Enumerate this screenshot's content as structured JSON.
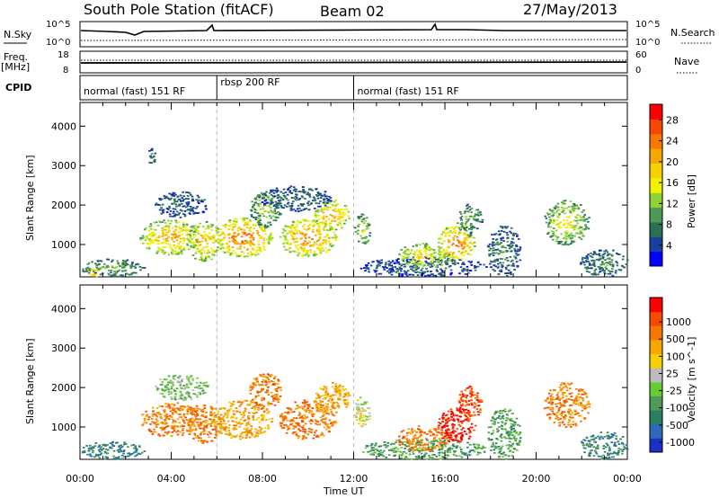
{
  "header": {
    "station": "South Pole Station (fitACF)",
    "beam": "Beam 02",
    "date": "27/May/2013"
  },
  "top_panels": {
    "nsky_label": "N.Sky",
    "nsky_ticks": [
      "10^5",
      "10^0"
    ],
    "nsearch_label": "N.Search",
    "freq_label_1": "Freq.",
    "freq_label_2": "[MHz]",
    "freq_ticks": [
      "18",
      "8"
    ],
    "nave_ticks": [
      "60",
      "0"
    ],
    "nave_label": "Nave",
    "cpid_label": "CPID"
  },
  "cpid_segments": [
    {
      "label": "normal (fast) 151 RF",
      "start": 0,
      "end": 6.0
    },
    {
      "label": "rbsp 200 RF",
      "start": 6.0,
      "end": 12.0
    },
    {
      "label": "normal (fast) 151 RF",
      "start": 12.0,
      "end": 24.0
    }
  ],
  "chart_data": [
    {
      "type": "heatmap",
      "panel": "power",
      "title": "",
      "xlabel": "Time UT",
      "ylabel": "Slant Range [km]",
      "xlim": [
        0,
        24
      ],
      "ylim": [
        180,
        4600
      ],
      "x_ticks": [
        "00:00",
        "04:00",
        "08:00",
        "12:00",
        "16:00",
        "20:00",
        "00:00"
      ],
      "y_ticks": [
        1000,
        2000,
        3000,
        4000
      ],
      "colorbar": {
        "label": "Power [dB]",
        "range": [
          0,
          31
        ],
        "ticks": [
          "4",
          "8",
          "12",
          "16",
          "20",
          "24",
          "28"
        ],
        "colors": [
          "#0000ff",
          "#1a3f9e",
          "#2a6f56",
          "#4e9a54",
          "#8ed334",
          "#f2f200",
          "#f7d000",
          "#f7a600",
          "#f77700",
          "#f74a00",
          "#ff0000"
        ]
      },
      "blobs": [
        {
          "t0": 0.0,
          "t1": 2.8,
          "r0": 200,
          "r1": 650,
          "value": 12
        },
        {
          "t0": 0.2,
          "t1": 0.9,
          "r0": 200,
          "r1": 420,
          "value": 26
        },
        {
          "t0": 2.6,
          "t1": 5.2,
          "r0": 750,
          "r1": 1650,
          "value": 24
        },
        {
          "t0": 3.2,
          "t1": 5.6,
          "r0": 1700,
          "r1": 2350,
          "value": 6
        },
        {
          "t0": 2.9,
          "t1": 3.3,
          "r0": 3050,
          "r1": 3450,
          "value": 7
        },
        {
          "t0": 4.6,
          "t1": 6.2,
          "r0": 600,
          "r1": 1600,
          "value": 22
        },
        {
          "t0": 5.8,
          "t1": 8.4,
          "r0": 700,
          "r1": 1700,
          "value": 28
        },
        {
          "t0": 7.4,
          "t1": 8.8,
          "r0": 1450,
          "r1": 2400,
          "value": 14
        },
        {
          "t0": 8.7,
          "t1": 11.2,
          "r0": 700,
          "r1": 1700,
          "value": 27
        },
        {
          "t0": 10.2,
          "t1": 11.8,
          "r0": 1350,
          "r1": 2150,
          "value": 24
        },
        {
          "t0": 7.8,
          "t1": 11.0,
          "r0": 1850,
          "r1": 2500,
          "value": 7
        },
        {
          "t0": 12.0,
          "t1": 12.7,
          "r0": 1000,
          "r1": 1800,
          "value": 16
        },
        {
          "t0": 12.2,
          "t1": 17.8,
          "r0": 200,
          "r1": 700,
          "value": 6
        },
        {
          "t0": 13.8,
          "t1": 16.2,
          "r0": 400,
          "r1": 1050,
          "value": 20
        },
        {
          "t0": 15.6,
          "t1": 17.3,
          "r0": 600,
          "r1": 1500,
          "value": 28
        },
        {
          "t0": 16.5,
          "t1": 17.6,
          "r0": 1200,
          "r1": 2050,
          "value": 12
        },
        {
          "t0": 17.8,
          "t1": 19.3,
          "r0": 200,
          "r1": 1500,
          "value": 9
        },
        {
          "t0": 20.3,
          "t1": 22.3,
          "r0": 1000,
          "r1": 2150,
          "value": 18
        },
        {
          "t0": 21.9,
          "t1": 24.0,
          "r0": 200,
          "r1": 900,
          "value": 9
        }
      ]
    },
    {
      "type": "heatmap",
      "panel": "velocity",
      "title": "",
      "xlabel": "Time UT",
      "ylabel": "Slant Range [km]",
      "xlim": [
        0,
        24
      ],
      "ylim": [
        180,
        4600
      ],
      "x_ticks": [
        "00:00",
        "04:00",
        "08:00",
        "12:00",
        "16:00",
        "20:00",
        "00:00"
      ],
      "y_ticks": [
        1000,
        2000,
        3000,
        4000
      ],
      "colorbar": {
        "label": "Velocity [m s^-1]",
        "ticks": [
          "1000",
          "500",
          "100",
          "25",
          "-25",
          "-100",
          "-500",
          "-1000"
        ],
        "colors": [
          "#1a2fc8",
          "#2f6ab8",
          "#2a7f62",
          "#4f9a5a",
          "#66cc33",
          "#bcbcbc",
          "#f7d000",
          "#f7a600",
          "#f77700",
          "#f74a00",
          "#ff0000"
        ]
      },
      "blobs": [
        {
          "t0": 0.0,
          "t1": 2.8,
          "r0": 200,
          "r1": 650,
          "value": 2
        },
        {
          "t0": 2.6,
          "t1": 5.2,
          "r0": 750,
          "r1": 1650,
          "value": 8
        },
        {
          "t0": 3.2,
          "t1": 5.6,
          "r0": 1700,
          "r1": 2350,
          "value": 4
        },
        {
          "t0": 4.6,
          "t1": 6.2,
          "r0": 600,
          "r1": 1600,
          "value": 8
        },
        {
          "t0": 5.8,
          "t1": 8.4,
          "r0": 700,
          "r1": 1700,
          "value": 7
        },
        {
          "t0": 7.4,
          "t1": 8.8,
          "r0": 1450,
          "r1": 2400,
          "value": 8
        },
        {
          "t0": 8.7,
          "t1": 11.2,
          "r0": 700,
          "r1": 1700,
          "value": 8
        },
        {
          "t0": 10.2,
          "t1": 11.8,
          "r0": 1350,
          "r1": 2150,
          "value": 7
        },
        {
          "t0": 12.0,
          "t1": 12.7,
          "r0": 1000,
          "r1": 1800,
          "value": 5
        },
        {
          "t0": 12.2,
          "t1": 17.8,
          "r0": 200,
          "r1": 700,
          "value": 3
        },
        {
          "t0": 13.8,
          "t1": 16.2,
          "r0": 400,
          "r1": 1050,
          "value": 8
        },
        {
          "t0": 15.6,
          "t1": 17.3,
          "r0": 600,
          "r1": 1500,
          "value": 10
        },
        {
          "t0": 16.5,
          "t1": 17.6,
          "r0": 1200,
          "r1": 2050,
          "value": 9
        },
        {
          "t0": 17.8,
          "t1": 19.3,
          "r0": 200,
          "r1": 1500,
          "value": 3
        },
        {
          "t0": 20.3,
          "t1": 22.3,
          "r0": 1000,
          "r1": 2150,
          "value": 8
        },
        {
          "t0": 21.9,
          "t1": 24.0,
          "r0": 200,
          "r1": 900,
          "value": 2
        }
      ]
    }
  ]
}
